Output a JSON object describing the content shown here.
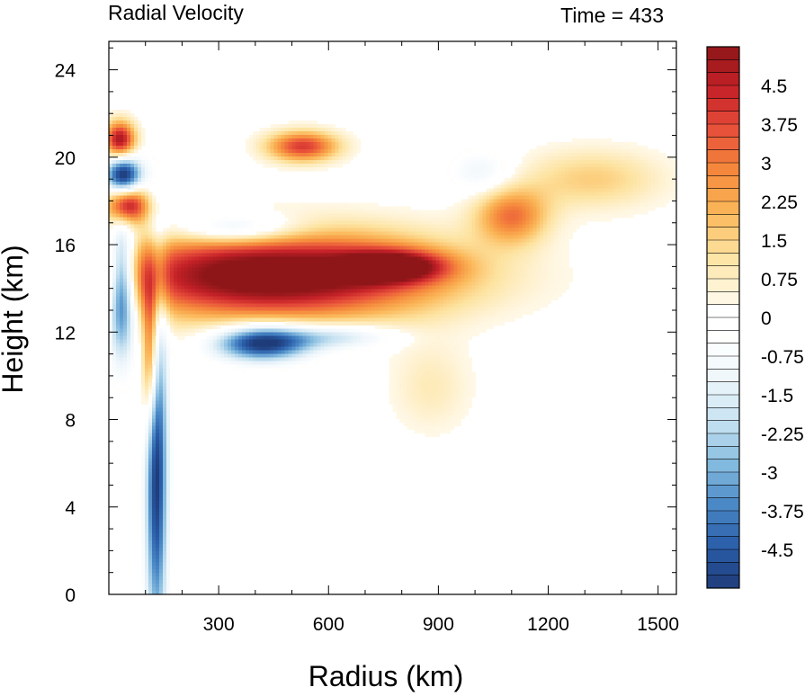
{
  "chart_data": {
    "type": "heatmap",
    "title": "Radial Velocity",
    "right_title": "Time = 433",
    "xlabel": "Radius (km)",
    "ylabel": "Height (km)",
    "xlim": [
      0,
      1550
    ],
    "ylim": [
      0,
      25.3
    ],
    "x_ticks": [
      300,
      600,
      900,
      1200,
      1500
    ],
    "x_tick_labels": [
      "300",
      "600",
      "900",
      "1200",
      "1500"
    ],
    "y_ticks": [
      0,
      4,
      8,
      12,
      16,
      20,
      24
    ],
    "y_tick_labels": [
      "0",
      "4",
      "8",
      "12",
      "16",
      "20",
      "24"
    ],
    "colorbar": {
      "levels_min": -5.25,
      "levels_max": 5.25,
      "step": 0.25,
      "labels": [
        "4.5",
        "3.75",
        "3",
        "2.25",
        "1.5",
        "0.75",
        "0",
        "-0.75",
        "-1.5",
        "-2.25",
        "-3",
        "-3.75",
        "-4.5"
      ],
      "label_values": [
        4.5,
        3.75,
        3,
        2.25,
        1.5,
        0.75,
        0,
        -0.75,
        -1.5,
        -2.25,
        -3,
        -3.75,
        -4.5
      ],
      "colors_low_to_high": [
        "#1f3c7a",
        "#2a5da8",
        "#4a88c6",
        "#86bcdf",
        "#c7e2f1",
        "#eef6fb",
        "#ffffff",
        "#fff7e3",
        "#fde3a0",
        "#fbb85a",
        "#f58a3c",
        "#e8503a",
        "#c52128",
        "#8e1618"
      ]
    },
    "features": [
      {
        "desc": "outflow jet",
        "x": 450,
        "y": 14.6,
        "sx": 330,
        "sy": 1.4,
        "v": 6.2
      },
      {
        "desc": "outflow jet tip",
        "x": 780,
        "y": 15.0,
        "sx": 100,
        "sy": 0.5,
        "v": 4.2
      },
      {
        "desc": "lower inflow band",
        "x": 420,
        "y": 11.5,
        "sx": 90,
        "sy": 0.55,
        "v": -5.8
      },
      {
        "desc": "lower inflow tail",
        "x": 620,
        "y": 11.8,
        "sx": 110,
        "sy": 0.4,
        "v": -2.2
      },
      {
        "desc": "boundary layer inflow",
        "x": 130,
        "y": 6.0,
        "sx": 20,
        "sy": 5.5,
        "v": -5.5
      },
      {
        "desc": "eyewall outflow",
        "x": 115,
        "y": 11.0,
        "sx": 16,
        "sy": 2.5,
        "v": 4.5
      },
      {
        "desc": "upper left red",
        "x": 30,
        "y": 20.8,
        "sx": 30,
        "sy": 0.6,
        "v": 5.0
      },
      {
        "desc": "upper left red 2",
        "x": 50,
        "y": 17.8,
        "sx": 40,
        "sy": 0.6,
        "v": 5.0
      },
      {
        "desc": "upper left blue",
        "x": 40,
        "y": 19.2,
        "sx": 35,
        "sy": 0.6,
        "v": -5.5
      },
      {
        "desc": "left blue column",
        "x": 35,
        "y": 14.0,
        "sx": 25,
        "sy": 2.0,
        "v": -5.5
      },
      {
        "desc": "upper red band",
        "x": 530,
        "y": 20.5,
        "sx": 70,
        "sy": 0.5,
        "v": 4.0
      },
      {
        "desc": "upper blue band",
        "x": 350,
        "y": 16.7,
        "sx": 120,
        "sy": 0.5,
        "v": -2.5
      },
      {
        "desc": "upper orange region",
        "x": 1100,
        "y": 17.3,
        "sx": 70,
        "sy": 0.9,
        "v": 3.0
      },
      {
        "desc": "upper yellow region",
        "x": 1320,
        "y": 19.0,
        "sx": 140,
        "sy": 1.0,
        "v": 1.6
      },
      {
        "desc": "upper faint blue",
        "x": 1020,
        "y": 19.3,
        "sx": 60,
        "sy": 0.7,
        "v": -1.2
      },
      {
        "desc": "mid yellow",
        "x": 880,
        "y": 9.5,
        "sx": 80,
        "sy": 1.5,
        "v": 0.9
      }
    ]
  }
}
